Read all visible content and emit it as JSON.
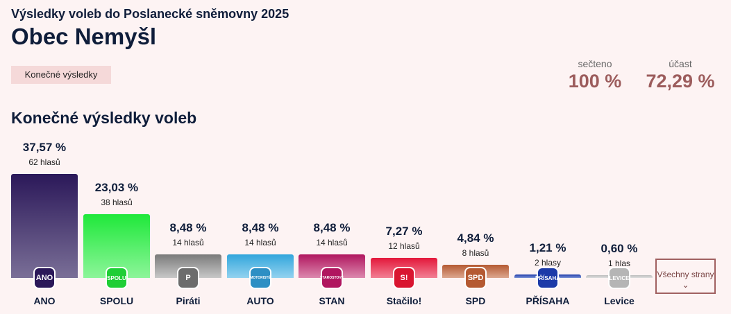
{
  "header": {
    "subtitle": "Výsledky voleb do Poslanecké sněmovny 2025",
    "title": "Obec Nemyšl",
    "badge": "Konečné výsledky"
  },
  "stats": {
    "counted_label": "sečteno",
    "counted_value": "100 %",
    "turnout_label": "účast",
    "turnout_value": "72,29 %"
  },
  "section_title": "Konečné výsledky voleb",
  "all_parties_button": "Všechny strany",
  "chart_data": {
    "type": "bar",
    "title": "Konečné výsledky voleb",
    "categories": [
      "ANO",
      "SPOLU",
      "Piráti",
      "AUTO",
      "STAN",
      "Stačilo!",
      "SPD",
      "PŘÍSAHA",
      "Levice"
    ],
    "values": [
      37.57,
      23.03,
      8.48,
      8.48,
      8.48,
      7.27,
      4.84,
      1.21,
      0.6
    ],
    "value_labels": [
      "37,57 %",
      "23,03 %",
      "8,48 %",
      "8,48 %",
      "8,48 %",
      "7,27 %",
      "4,84 %",
      "1,21 %",
      "0,60 %"
    ],
    "votes": [
      "62 hlasů",
      "38 hlasů",
      "14 hlasů",
      "14 hlasů",
      "14 hlasů",
      "12 hlasů",
      "8 hlasů",
      "2 hlasy",
      "1 hlas"
    ],
    "logos": [
      "ANO",
      "SPOLU",
      "P",
      "MOTORISTÉ",
      "STAROSTOVÉ",
      "S!",
      "SPD",
      "PŘÍSAHA",
      "LEVICE"
    ],
    "colors": [
      [
        "#2b1859",
        "#7a6f97"
      ],
      [
        "#1fe83a",
        "#8df59a"
      ],
      [
        "#7a7a7a",
        "#c8c8c8"
      ],
      [
        "#32a6dc",
        "#93d2ef"
      ],
      [
        "#b0165f",
        "#dc89ae"
      ],
      [
        "#e3173a",
        "#f28094"
      ],
      [
        "#b55a32",
        "#dca78f"
      ],
      [
        "#1c3aa8",
        "#7f95d8"
      ],
      [
        "#bdbdbd",
        "#dedede"
      ]
    ],
    "logo_colors": [
      "#2b1859",
      "#1fce36",
      "#6c6c6c",
      "#2d8fc4",
      "#b0165f",
      "#d91530",
      "#b55a32",
      "#1c3aa8",
      "#b5b5b5"
    ],
    "ylim": [
      0,
      37.57
    ]
  }
}
